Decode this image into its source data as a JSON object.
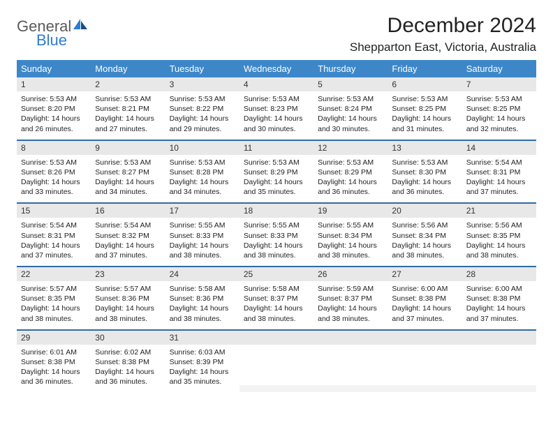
{
  "brand": {
    "line1": "General",
    "line2": "Blue"
  },
  "title": "December 2024",
  "location": "Shepparton East, Victoria, Australia",
  "colors": {
    "header_bg": "#3d87c9",
    "header_text": "#ffffff",
    "daynum_bg": "#e8e8e8",
    "row_divider": "#2f6aa8",
    "brand_blue": "#2e7cd1",
    "text": "#222222",
    "empty_bg": "#f3f3f3"
  },
  "typography": {
    "base_font": "Arial",
    "title_size_pt": 30,
    "body_size_pt": 10.5
  },
  "calendar": {
    "type": "table",
    "columns": [
      "Sunday",
      "Monday",
      "Tuesday",
      "Wednesday",
      "Thursday",
      "Friday",
      "Saturday"
    ],
    "weeks": [
      [
        {
          "n": "1",
          "sr": "5:53 AM",
          "ss": "8:20 PM",
          "dl": "14 hours and 26 minutes."
        },
        {
          "n": "2",
          "sr": "5:53 AM",
          "ss": "8:21 PM",
          "dl": "14 hours and 27 minutes."
        },
        {
          "n": "3",
          "sr": "5:53 AM",
          "ss": "8:22 PM",
          "dl": "14 hours and 29 minutes."
        },
        {
          "n": "4",
          "sr": "5:53 AM",
          "ss": "8:23 PM",
          "dl": "14 hours and 30 minutes."
        },
        {
          "n": "5",
          "sr": "5:53 AM",
          "ss": "8:24 PM",
          "dl": "14 hours and 30 minutes."
        },
        {
          "n": "6",
          "sr": "5:53 AM",
          "ss": "8:25 PM",
          "dl": "14 hours and 31 minutes."
        },
        {
          "n": "7",
          "sr": "5:53 AM",
          "ss": "8:25 PM",
          "dl": "14 hours and 32 minutes."
        }
      ],
      [
        {
          "n": "8",
          "sr": "5:53 AM",
          "ss": "8:26 PM",
          "dl": "14 hours and 33 minutes."
        },
        {
          "n": "9",
          "sr": "5:53 AM",
          "ss": "8:27 PM",
          "dl": "14 hours and 34 minutes."
        },
        {
          "n": "10",
          "sr": "5:53 AM",
          "ss": "8:28 PM",
          "dl": "14 hours and 34 minutes."
        },
        {
          "n": "11",
          "sr": "5:53 AM",
          "ss": "8:29 PM",
          "dl": "14 hours and 35 minutes."
        },
        {
          "n": "12",
          "sr": "5:53 AM",
          "ss": "8:29 PM",
          "dl": "14 hours and 36 minutes."
        },
        {
          "n": "13",
          "sr": "5:53 AM",
          "ss": "8:30 PM",
          "dl": "14 hours and 36 minutes."
        },
        {
          "n": "14",
          "sr": "5:54 AM",
          "ss": "8:31 PM",
          "dl": "14 hours and 37 minutes."
        }
      ],
      [
        {
          "n": "15",
          "sr": "5:54 AM",
          "ss": "8:31 PM",
          "dl": "14 hours and 37 minutes."
        },
        {
          "n": "16",
          "sr": "5:54 AM",
          "ss": "8:32 PM",
          "dl": "14 hours and 37 minutes."
        },
        {
          "n": "17",
          "sr": "5:55 AM",
          "ss": "8:33 PM",
          "dl": "14 hours and 38 minutes."
        },
        {
          "n": "18",
          "sr": "5:55 AM",
          "ss": "8:33 PM",
          "dl": "14 hours and 38 minutes."
        },
        {
          "n": "19",
          "sr": "5:55 AM",
          "ss": "8:34 PM",
          "dl": "14 hours and 38 minutes."
        },
        {
          "n": "20",
          "sr": "5:56 AM",
          "ss": "8:34 PM",
          "dl": "14 hours and 38 minutes."
        },
        {
          "n": "21",
          "sr": "5:56 AM",
          "ss": "8:35 PM",
          "dl": "14 hours and 38 minutes."
        }
      ],
      [
        {
          "n": "22",
          "sr": "5:57 AM",
          "ss": "8:35 PM",
          "dl": "14 hours and 38 minutes."
        },
        {
          "n": "23",
          "sr": "5:57 AM",
          "ss": "8:36 PM",
          "dl": "14 hours and 38 minutes."
        },
        {
          "n": "24",
          "sr": "5:58 AM",
          "ss": "8:36 PM",
          "dl": "14 hours and 38 minutes."
        },
        {
          "n": "25",
          "sr": "5:58 AM",
          "ss": "8:37 PM",
          "dl": "14 hours and 38 minutes."
        },
        {
          "n": "26",
          "sr": "5:59 AM",
          "ss": "8:37 PM",
          "dl": "14 hours and 38 minutes."
        },
        {
          "n": "27",
          "sr": "6:00 AM",
          "ss": "8:38 PM",
          "dl": "14 hours and 37 minutes."
        },
        {
          "n": "28",
          "sr": "6:00 AM",
          "ss": "8:38 PM",
          "dl": "14 hours and 37 minutes."
        }
      ],
      [
        {
          "n": "29",
          "sr": "6:01 AM",
          "ss": "8:38 PM",
          "dl": "14 hours and 36 minutes."
        },
        {
          "n": "30",
          "sr": "6:02 AM",
          "ss": "8:38 PM",
          "dl": "14 hours and 36 minutes."
        },
        {
          "n": "31",
          "sr": "6:03 AM",
          "ss": "8:39 PM",
          "dl": "14 hours and 35 minutes."
        },
        null,
        null,
        null,
        null
      ]
    ]
  },
  "labels": {
    "sunrise": "Sunrise:",
    "sunset": "Sunset:",
    "daylight": "Daylight:"
  }
}
